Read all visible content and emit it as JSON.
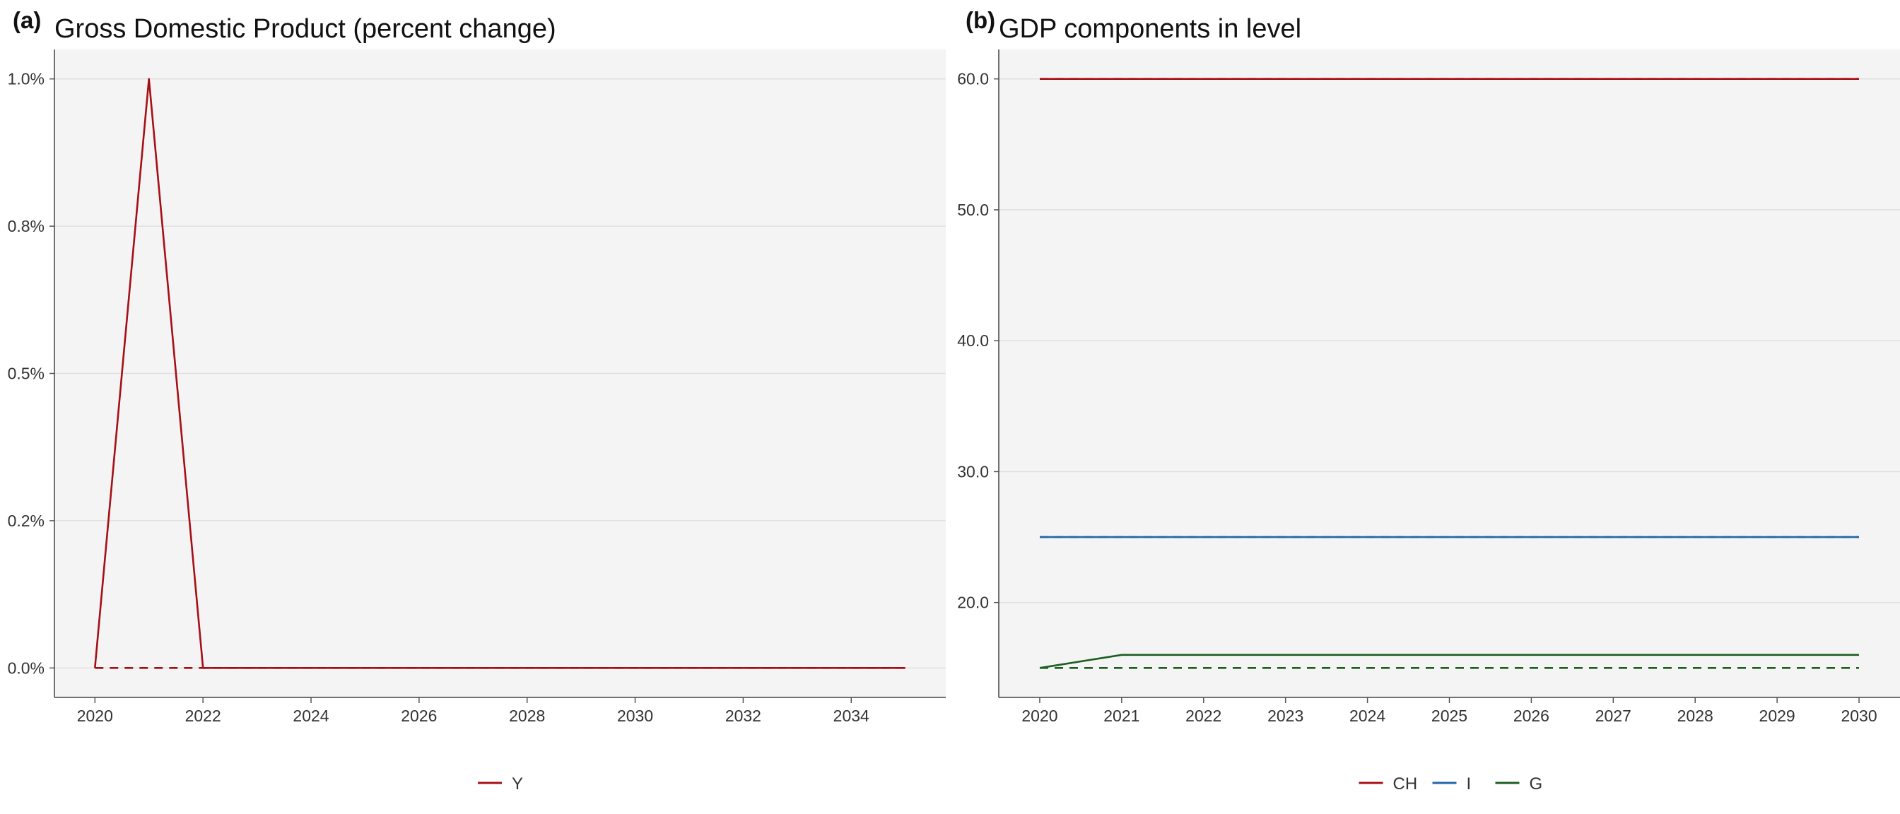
{
  "chart_data": [
    {
      "type": "line",
      "panel_label": "(a)",
      "title": "Gross Domestic Product (percent change)",
      "xlabel": "",
      "ylabel": "",
      "x_ticks": [
        2020,
        2022,
        2024,
        2026,
        2028,
        2030,
        2032,
        2034
      ],
      "y_ticks": [
        0,
        0.25,
        0.5,
        0.75,
        1.0
      ],
      "y_tick_labels": [
        "0.0%",
        "0.2%",
        "0.5%",
        "0.8%",
        "1.0%"
      ],
      "xlim": [
        2019.25,
        2035.75
      ],
      "ylim": [
        -0.05,
        1.05
      ],
      "grid": "horizontal",
      "legend_position": "bottom-center",
      "series": [
        {
          "name": "Y",
          "color": "#a50f15",
          "dash": "solid",
          "x": [
            2020,
            2021,
            2022,
            2023,
            2024,
            2025,
            2026,
            2027,
            2028,
            2029,
            2030,
            2031,
            2032,
            2033,
            2034,
            2035
          ],
          "values": [
            0,
            1.0,
            0,
            0,
            0,
            0,
            0,
            0,
            0,
            0,
            0,
            0,
            0,
            0,
            0,
            0
          ]
        },
        {
          "name": "",
          "legend": false,
          "color": "#a50f15",
          "dash": "dashed",
          "x": [
            2020,
            2021,
            2022,
            2023,
            2024,
            2025,
            2026,
            2027,
            2028,
            2029,
            2030,
            2031,
            2032,
            2033,
            2034,
            2035
          ],
          "values": [
            0,
            0,
            0,
            0,
            0,
            0,
            0,
            0,
            0,
            0,
            0,
            0,
            0,
            0,
            0,
            0
          ]
        }
      ]
    },
    {
      "type": "line",
      "panel_label": "(b)",
      "title": "GDP components in level",
      "xlabel": "",
      "ylabel": "",
      "x_ticks": [
        2020,
        2021,
        2022,
        2023,
        2024,
        2025,
        2026,
        2027,
        2028,
        2029,
        2030
      ],
      "y_ticks": [
        20,
        30,
        40,
        50,
        60
      ],
      "y_tick_labels": [
        "20.0",
        "30.0",
        "40.0",
        "50.0",
        "60.0"
      ],
      "xlim": [
        2019.5,
        2030.5
      ],
      "ylim": [
        12.75,
        62.25
      ],
      "grid": "horizontal",
      "legend_position": "bottom-center",
      "series": [
        {
          "name": "CH",
          "color": "#a50f15",
          "dash": "solid",
          "x": [
            2020,
            2021,
            2022,
            2023,
            2024,
            2025,
            2026,
            2027,
            2028,
            2029,
            2030
          ],
          "values": [
            60,
            60,
            60,
            60,
            60,
            60,
            60,
            60,
            60,
            60,
            60
          ]
        },
        {
          "name": "I",
          "color": "#2166ac",
          "dash": "solid",
          "x": [
            2020,
            2021,
            2022,
            2023,
            2024,
            2025,
            2026,
            2027,
            2028,
            2029,
            2030
          ],
          "values": [
            25,
            25,
            25,
            25,
            25,
            25,
            25,
            25,
            25,
            25,
            25
          ]
        },
        {
          "name": "G",
          "color": "#1b5e20",
          "dash": "solid",
          "x": [
            2020,
            2021,
            2022,
            2023,
            2024,
            2025,
            2026,
            2027,
            2028,
            2029,
            2030
          ],
          "values": [
            15,
            16,
            16,
            16,
            16,
            16,
            16,
            16,
            16,
            16,
            16
          ]
        },
        {
          "name": "",
          "legend": false,
          "color": "#a50f15",
          "dash": "dashed",
          "x": [
            2020,
            2021,
            2022,
            2023,
            2024,
            2025,
            2026,
            2027,
            2028,
            2029,
            2030
          ],
          "values": [
            60,
            60,
            60,
            60,
            60,
            60,
            60,
            60,
            60,
            60,
            60
          ]
        },
        {
          "name": "",
          "legend": false,
          "color": "#2166ac",
          "dash": "dashed",
          "x": [
            2020,
            2021,
            2022,
            2023,
            2024,
            2025,
            2026,
            2027,
            2028,
            2029,
            2030
          ],
          "values": [
            25,
            25,
            25,
            25,
            25,
            25,
            25,
            25,
            25,
            25,
            25
          ]
        },
        {
          "name": "",
          "legend": false,
          "color": "#1b5e20",
          "dash": "dashed",
          "x": [
            2020,
            2021,
            2022,
            2023,
            2024,
            2025,
            2026,
            2027,
            2028,
            2029,
            2030
          ],
          "values": [
            15,
            15,
            15,
            15,
            15,
            15,
            15,
            15,
            15,
            15,
            15
          ]
        }
      ]
    }
  ]
}
